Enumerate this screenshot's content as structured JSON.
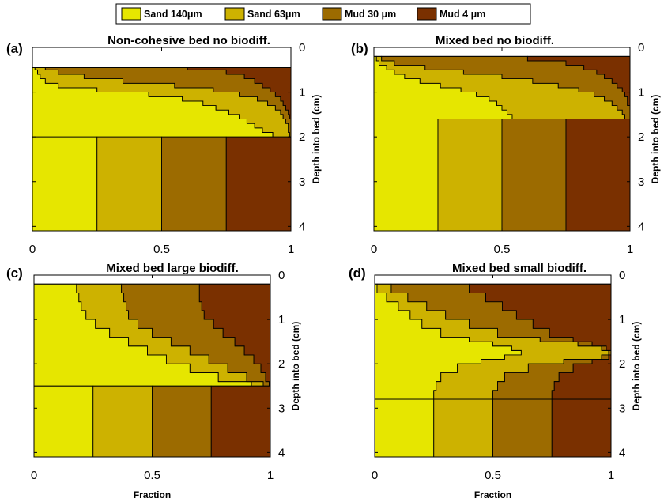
{
  "legend": [
    {
      "label": "Sand 140μm",
      "color": "#e6e600"
    },
    {
      "label": "Sand 63μm",
      "color": "#cdb200"
    },
    {
      "label": "Mud 30 μm",
      "color": "#9c6b00"
    },
    {
      "label": "Mud 4 μm",
      "color": "#7a3000"
    }
  ],
  "chart_data": [
    {
      "type": "area",
      "panel": "(a)",
      "title": "Non-cohesive bed no biodiff.",
      "xlabel": "",
      "ylabel": "Depth into bed (cm)",
      "xlim": [
        0,
        1
      ],
      "ylim": [
        0,
        4.1
      ],
      "y_reversed": true,
      "xticks": [
        "0",
        "0.5",
        "1"
      ],
      "yticks": [
        "0",
        "1",
        "2",
        "3",
        "4"
      ],
      "series_names": [
        "Sand 140μm",
        "Sand 63μm",
        "Mud 30 μm",
        "Mud 4 μm"
      ],
      "top": 0.45,
      "cumulative_boundaries": [
        {
          "depth": [
            0.45,
            0.5,
            0.6,
            0.7,
            0.8,
            0.9,
            1.0,
            1.1,
            1.2,
            1.3,
            1.4,
            1.5,
            1.6,
            1.7,
            1.8,
            1.9,
            2.0
          ],
          "b1": [
            0.01,
            0.02,
            0.03,
            0.05,
            0.1,
            0.25,
            0.45,
            0.58,
            0.66,
            0.71,
            0.76,
            0.8,
            0.83,
            0.86,
            0.89,
            0.93,
            0.96
          ],
          "b2": [
            0.05,
            0.1,
            0.2,
            0.35,
            0.55,
            0.7,
            0.8,
            0.87,
            0.91,
            0.94,
            0.96,
            0.97,
            0.98,
            0.99,
            0.99,
            0.995,
            1.0
          ],
          "b3": [
            0.6,
            0.75,
            0.82,
            0.86,
            0.89,
            0.92,
            0.94,
            0.96,
            0.97,
            0.98,
            0.99,
            0.995,
            1.0,
            1.0,
            1.0,
            1.0,
            1.0
          ]
        },
        {
          "depth": [
            2.0,
            4.1
          ],
          "b1": [
            0.25,
            0.25
          ],
          "b2": [
            0.5,
            0.5
          ],
          "b3": [
            0.75,
            0.75
          ]
        }
      ]
    },
    {
      "type": "area",
      "panel": "(b)",
      "title": "Mixed bed no biodiff.",
      "xlabel": "",
      "ylabel": "Depth into bed (cm)",
      "xlim": [
        0,
        1
      ],
      "ylim": [
        0,
        4.1
      ],
      "y_reversed": true,
      "xticks": [
        "0",
        "0.5",
        "1"
      ],
      "yticks": [
        "0",
        "1",
        "2",
        "3",
        "4"
      ],
      "series_names": [
        "Sand 140μm",
        "Sand 63μm",
        "Mud 30 μm",
        "Mud 4 μm"
      ],
      "top": 0.2,
      "cumulative_boundaries": [
        {
          "depth": [
            0.2,
            0.3,
            0.4,
            0.5,
            0.6,
            0.7,
            0.8,
            0.9,
            1.0,
            1.1,
            1.2,
            1.3,
            1.4,
            1.5,
            1.6
          ],
          "b1": [
            0.01,
            0.02,
            0.05,
            0.08,
            0.12,
            0.18,
            0.26,
            0.34,
            0.4,
            0.45,
            0.48,
            0.5,
            0.52,
            0.54,
            0.56
          ],
          "b2": [
            0.03,
            0.08,
            0.2,
            0.35,
            0.5,
            0.62,
            0.72,
            0.8,
            0.86,
            0.9,
            0.93,
            0.95,
            0.97,
            0.98,
            0.99
          ],
          "b3": [
            0.6,
            0.75,
            0.82,
            0.87,
            0.9,
            0.93,
            0.95,
            0.97,
            0.98,
            0.99,
            0.99,
            1.0,
            1.0,
            1.0,
            1.0
          ]
        },
        {
          "depth": [
            1.6,
            4.1
          ],
          "b1": [
            0.25,
            0.25
          ],
          "b2": [
            0.5,
            0.5
          ],
          "b3": [
            0.75,
            0.75
          ]
        }
      ]
    },
    {
      "type": "area",
      "panel": "(c)",
      "title": "Mixed bed large biodiff.",
      "xlabel": "Fraction",
      "ylabel": "Depth into bed (cm)",
      "xlim": [
        0,
        1
      ],
      "ylim": [
        0,
        4.1
      ],
      "y_reversed": true,
      "xticks": [
        "0",
        "0.5",
        "1"
      ],
      "yticks": [
        "0",
        "1",
        "2",
        "3",
        "4"
      ],
      "series_names": [
        "Sand 140μm",
        "Sand 63μm",
        "Mud 30 μm",
        "Mud 4 μm"
      ],
      "top": 0.2,
      "cumulative_boundaries": [
        {
          "depth": [
            0.2,
            0.4,
            0.6,
            0.8,
            1.0,
            1.2,
            1.4,
            1.6,
            1.8,
            2.0,
            2.2,
            2.4,
            2.5
          ],
          "b1": [
            0.18,
            0.19,
            0.2,
            0.22,
            0.26,
            0.32,
            0.4,
            0.48,
            0.56,
            0.66,
            0.78,
            0.92,
            0.98
          ],
          "b2": [
            0.37,
            0.38,
            0.39,
            0.4,
            0.44,
            0.5,
            0.58,
            0.66,
            0.74,
            0.82,
            0.9,
            0.97,
            1.0
          ],
          "b3": [
            0.7,
            0.7,
            0.71,
            0.72,
            0.76,
            0.8,
            0.85,
            0.89,
            0.93,
            0.96,
            0.98,
            0.995,
            1.0
          ]
        },
        {
          "depth": [
            2.5,
            4.1
          ],
          "b1": [
            0.25,
            0.25
          ],
          "b2": [
            0.5,
            0.5
          ],
          "b3": [
            0.75,
            0.75
          ]
        }
      ]
    },
    {
      "type": "area",
      "panel": "(d)",
      "title": "Mixed bed small biodiff.",
      "xlabel": "Fraction",
      "ylabel": "Depth into bed (cm)",
      "xlim": [
        0,
        1
      ],
      "ylim": [
        0,
        4.1
      ],
      "y_reversed": true,
      "xticks": [
        "0",
        "0.5",
        "1"
      ],
      "yticks": [
        "0",
        "1",
        "2",
        "3",
        "4"
      ],
      "series_names": [
        "Sand 140μm",
        "Sand 63μm",
        "Mud 30 μm",
        "Mud 4 μm"
      ],
      "top": 0.2,
      "cumulative_boundaries": [
        {
          "depth": [
            0.2,
            0.4,
            0.6,
            0.8,
            1.0,
            1.2,
            1.4,
            1.5,
            1.6,
            1.7,
            1.8,
            1.9,
            2.0,
            2.2,
            2.4,
            2.6,
            2.8
          ],
          "b1": [
            0.01,
            0.05,
            0.1,
            0.15,
            0.2,
            0.28,
            0.4,
            0.5,
            0.58,
            0.62,
            0.55,
            0.45,
            0.35,
            0.28,
            0.26,
            0.25,
            0.25
          ],
          "b2": [
            0.07,
            0.14,
            0.22,
            0.3,
            0.4,
            0.52,
            0.7,
            0.86,
            0.96,
            0.99,
            0.96,
            0.8,
            0.65,
            0.55,
            0.52,
            0.5,
            0.5
          ],
          "b3": [
            0.4,
            0.47,
            0.54,
            0.6,
            0.67,
            0.74,
            0.84,
            0.92,
            0.98,
            1.0,
            0.99,
            0.92,
            0.84,
            0.78,
            0.76,
            0.75,
            0.75
          ]
        },
        {
          "depth": [
            2.8,
            4.1
          ],
          "b1": [
            0.25,
            0.25
          ],
          "b2": [
            0.5,
            0.5
          ],
          "b3": [
            0.75,
            0.75
          ]
        }
      ]
    }
  ]
}
